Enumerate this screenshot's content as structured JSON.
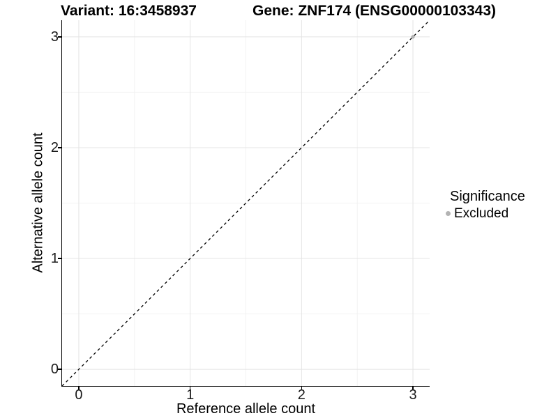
{
  "chart_data": {
    "type": "scatter",
    "title_left": "Variant: 16:3458937",
    "title_right": "Gene: ZNF174 (ENSG00000103343)",
    "xlabel": "Reference allele count",
    "ylabel": "Alternative allele count",
    "xlim": [
      -0.15,
      3.15
    ],
    "ylim": [
      -0.15,
      3.15
    ],
    "xticks": [
      0,
      1,
      2,
      3
    ],
    "yticks": [
      0,
      1,
      2,
      3
    ],
    "minor_xticks": [
      0.5,
      1.5,
      2.5
    ],
    "minor_yticks": [
      0.5,
      1.5,
      2.5
    ],
    "grid": "major-and-minor",
    "reference_line": {
      "kind": "abline",
      "slope": 1,
      "intercept": 0,
      "style": "dashed",
      "color": "#000000"
    },
    "series": [
      {
        "name": "Excluded",
        "color": "#b3b3b3",
        "points": [
          {
            "x": 3,
            "y": 3
          }
        ]
      }
    ],
    "legend": {
      "title": "Significance",
      "position": "right",
      "items": [
        {
          "label": "Excluded",
          "color": "#b3b3b3"
        }
      ]
    },
    "colors": {
      "background": "#ffffff",
      "panel_background": "#ffffff",
      "grid_major": "#e4e4e4",
      "grid_minor": "#f2f2f2",
      "axis_line": "#000000",
      "tick_text": "#1a1a1a"
    }
  }
}
